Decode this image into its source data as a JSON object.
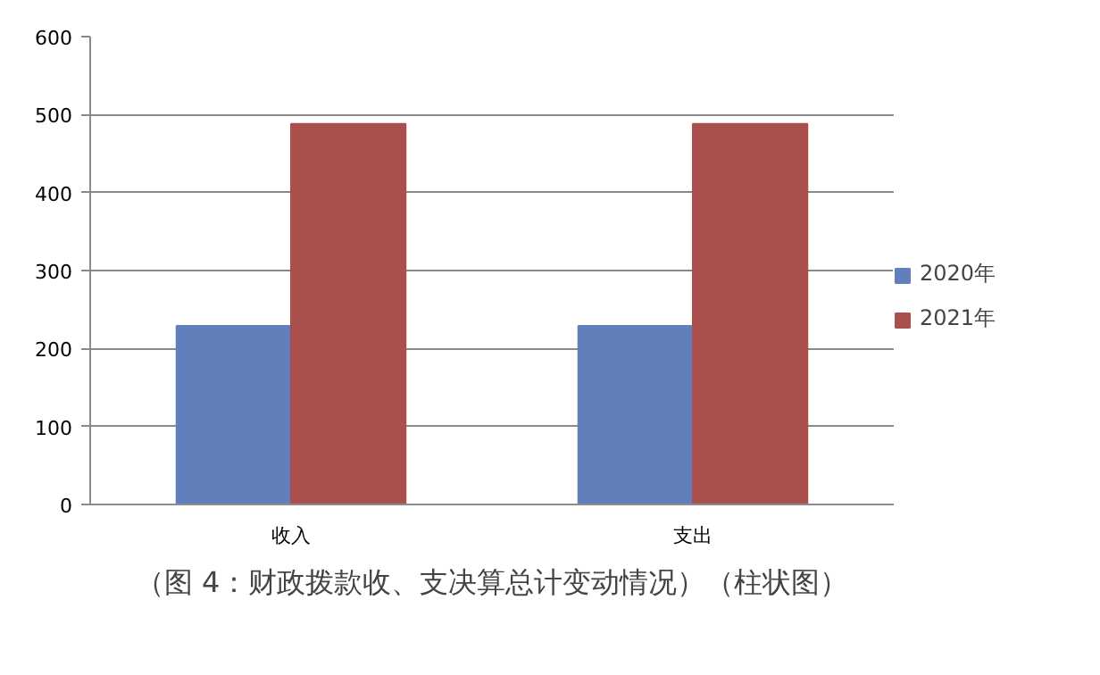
{
  "chart_data": {
    "type": "bar",
    "categories": [
      "收入",
      "支出"
    ],
    "series": [
      {
        "name": "2020年",
        "color": "#6180bb",
        "values": [
          229,
          229
        ]
      },
      {
        "name": "2021年",
        "color": "#a9504d",
        "values": [
          488,
          488
        ]
      }
    ],
    "ylim": [
      0,
      600
    ],
    "yticks": [
      0,
      100,
      200,
      300,
      400,
      500,
      600
    ],
    "grid": "y",
    "legend": "right",
    "annotations": [
      "（图 4：财政拨款收、支决算总计变动情况）（柱状图）"
    ]
  }
}
